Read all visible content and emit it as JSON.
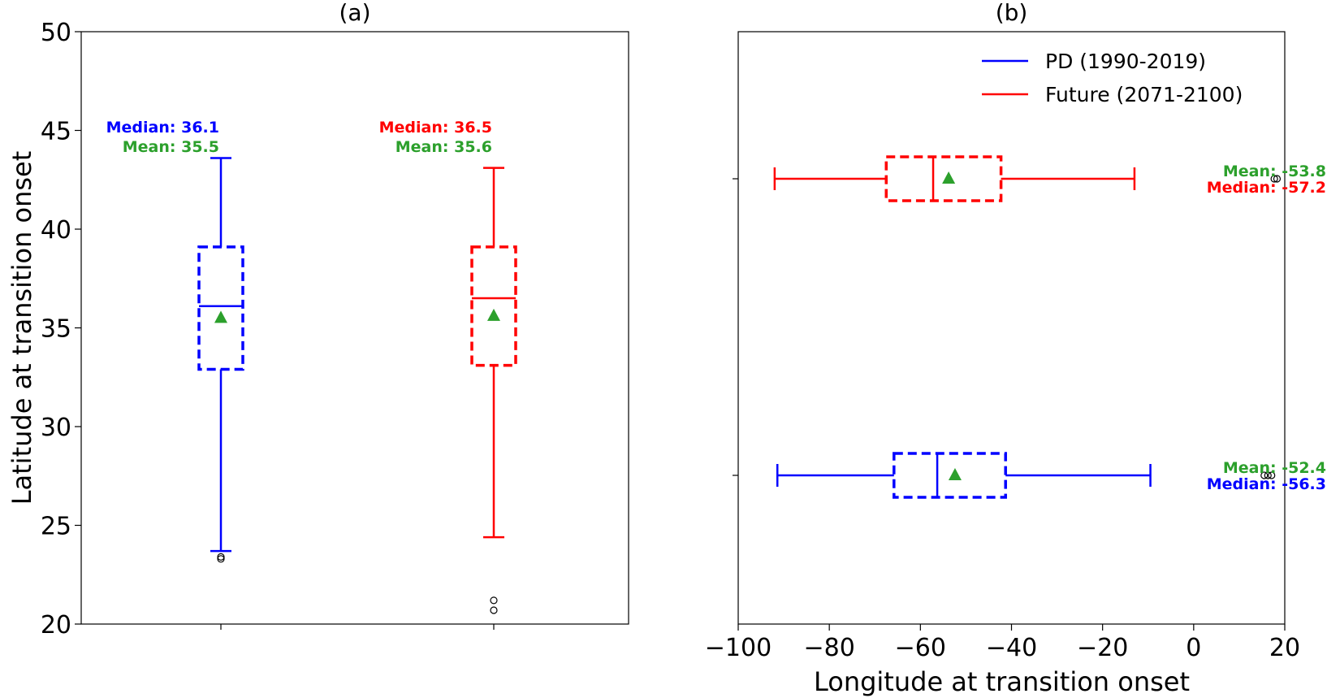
{
  "colors": {
    "pd": "#0000ff",
    "future": "#ff0000",
    "mean": "#2ca02c",
    "flier": "#000000"
  },
  "chart_data": [
    {
      "type": "box",
      "orientation": "vertical",
      "title": "(a)",
      "xlabel": "",
      "ylabel": "Latitude at transition onset",
      "ylim": [
        20,
        50
      ],
      "yticks": [
        "20",
        "25",
        "30",
        "35",
        "40",
        "45",
        "50"
      ],
      "grid": false,
      "series": [
        {
          "name": "PD (1990-2019)",
          "color": "#0000ff",
          "q1": 32.9,
          "median": 36.1,
          "q3": 39.1,
          "whisker_low": 23.7,
          "whisker_high": 43.6,
          "mean": 35.5,
          "fliers": [
            23.3,
            23.4
          ],
          "median_text": "Median: 36.1",
          "mean_text": "Mean: 35.5"
        },
        {
          "name": "Future (2071-2100)",
          "color": "#ff0000",
          "q1": 33.1,
          "median": 36.5,
          "q3": 39.1,
          "whisker_low": 24.4,
          "whisker_high": 43.1,
          "mean": 35.6,
          "fliers": [
            20.7,
            21.2
          ],
          "median_text": "Median: 36.5",
          "mean_text": "Mean: 35.6"
        }
      ]
    },
    {
      "type": "box",
      "orientation": "horizontal",
      "title": "(b)",
      "xlabel": "Longitude at transition onset",
      "ylabel": "",
      "xlim": [
        -100,
        20
      ],
      "xticks": [
        "−100",
        "−80",
        "−60",
        "−40",
        "−20",
        "0",
        "20"
      ],
      "grid": false,
      "legend": {
        "placement": "top-right",
        "entries": [
          {
            "label": "PD (1990-2019)",
            "color": "#0000ff"
          },
          {
            "label": "Future (2071-2100)",
            "color": "#ff0000"
          }
        ]
      },
      "series": [
        {
          "name": "Future (2071-2100)",
          "color": "#ff0000",
          "q1": -67.5,
          "median": -57.2,
          "q3": -42.3,
          "whisker_low": -92,
          "whisker_high": -13,
          "mean": -53.8,
          "fliers": [
            17.7,
            18.3
          ],
          "mean_text": "Mean: -53.8",
          "median_text": "Median: -57.2"
        },
        {
          "name": "PD (1990-2019)",
          "color": "#0000ff",
          "q1": -65.8,
          "median": -56.3,
          "q3": -41.3,
          "whisker_low": -91.4,
          "whisker_high": -9.5,
          "mean": -52.4,
          "fliers": [
            15.5,
            16.3,
            17.1
          ],
          "mean_text": "Mean: -52.4",
          "median_text": "Median: -56.3"
        }
      ]
    }
  ]
}
